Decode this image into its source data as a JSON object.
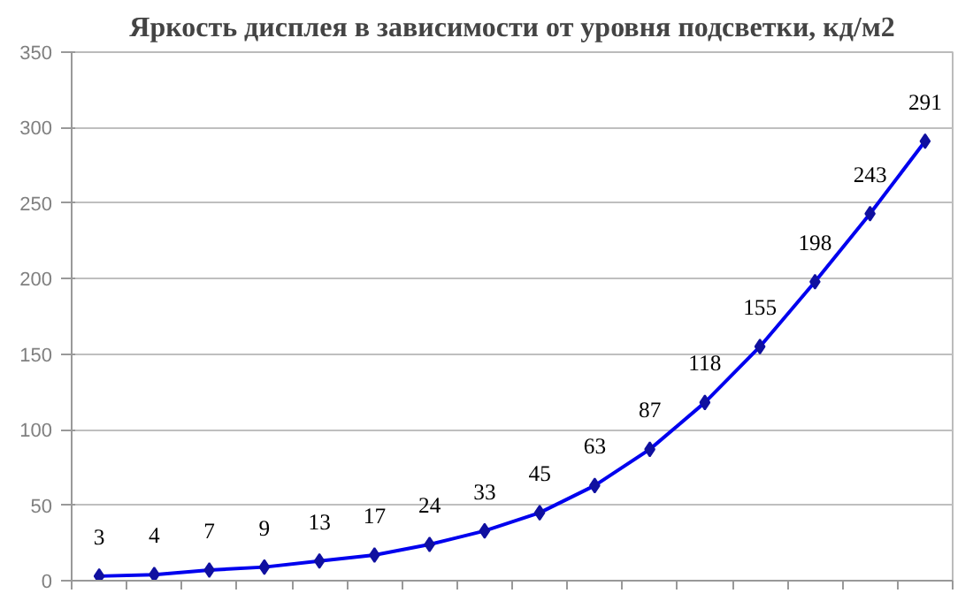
{
  "chart_data": {
    "type": "line",
    "title": "Яркость дисплея в зависимости от уровня подсветки, кд/м2",
    "categories": [
      null,
      null,
      null,
      null,
      null,
      null,
      null,
      null,
      null,
      null,
      null,
      null,
      null,
      null,
      null,
      null
    ],
    "series": [
      {
        "color": "#0000ee",
        "values": [
          3,
          4,
          7,
          9,
          13,
          17,
          24,
          33,
          45,
          63,
          87,
          118,
          155,
          198,
          243,
          291
        ]
      }
    ],
    "ylim": [
      0,
      350
    ],
    "yticks": [
      0,
      50,
      100,
      150,
      200,
      250,
      300,
      350
    ],
    "grid": "y",
    "marker": "diamond",
    "line_style": "solid",
    "data_labels": true
  }
}
